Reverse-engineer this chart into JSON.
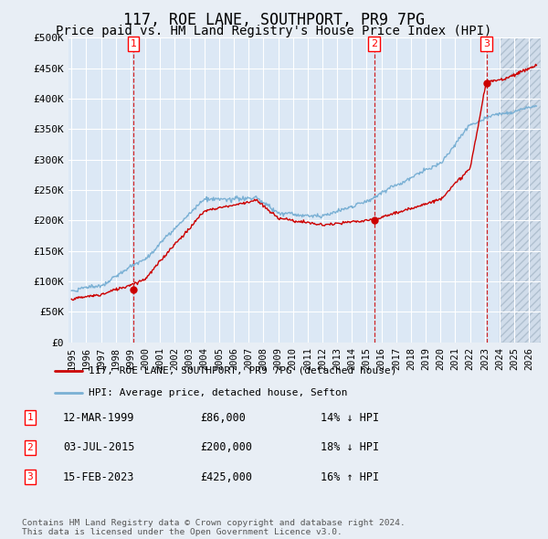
{
  "title": "117, ROE LANE, SOUTHPORT, PR9 7PG",
  "subtitle": "Price paid vs. HM Land Registry's House Price Index (HPI)",
  "title_fontsize": 12,
  "subtitle_fontsize": 10,
  "ylabel_ticks": [
    "£0",
    "£50K",
    "£100K",
    "£150K",
    "£200K",
    "£250K",
    "£300K",
    "£350K",
    "£400K",
    "£450K",
    "£500K"
  ],
  "ytick_values": [
    0,
    50000,
    100000,
    150000,
    200000,
    250000,
    300000,
    350000,
    400000,
    450000,
    500000
  ],
  "ylim": [
    0,
    500000
  ],
  "xlim_start": 1994.8,
  "xlim_end": 2026.8,
  "background_color": "#e8eef5",
  "plot_bg_color": "#dce8f5",
  "grid_color": "#ffffff",
  "hpi_color": "#7ab0d4",
  "price_color": "#cc0000",
  "sale_marker_color": "#cc0000",
  "sale1_x": 1999.19,
  "sale1_y": 86000,
  "sale2_x": 2015.5,
  "sale2_y": 200000,
  "sale3_x": 2023.12,
  "sale3_y": 425000,
  "vline_color": "#cc0000",
  "legend_entries": [
    "117, ROE LANE, SOUTHPORT, PR9 7PG (detached house)",
    "HPI: Average price, detached house, Sefton"
  ],
  "table_rows": [
    [
      "1",
      "12-MAR-1999",
      "£86,000",
      "14% ↓ HPI"
    ],
    [
      "2",
      "03-JUL-2015",
      "£200,000",
      "18% ↓ HPI"
    ],
    [
      "3",
      "15-FEB-2023",
      "£425,000",
      "16% ↑ HPI"
    ]
  ],
  "footnote": "Contains HM Land Registry data © Crown copyright and database right 2024.\nThis data is licensed under the Open Government Licence v3.0.",
  "hatch_start": 2024.0,
  "xtick_years": [
    1995,
    1996,
    1997,
    1998,
    1999,
    2000,
    2001,
    2002,
    2003,
    2004,
    2005,
    2006,
    2007,
    2008,
    2009,
    2010,
    2011,
    2012,
    2013,
    2014,
    2015,
    2016,
    2017,
    2018,
    2019,
    2020,
    2021,
    2022,
    2023,
    2024,
    2025,
    2026
  ]
}
